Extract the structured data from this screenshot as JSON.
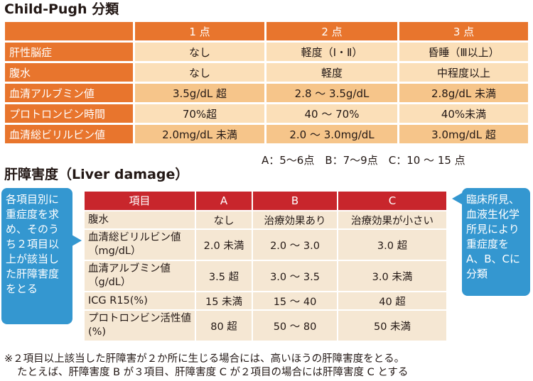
{
  "child_pugh": {
    "title": "Child-Pugh 分類",
    "headers": [
      "",
      "1 点",
      "2 点",
      "3 点"
    ],
    "rows": [
      {
        "label": "肝性脳症",
        "values": [
          "なし",
          "軽度（Ⅰ・Ⅱ）",
          "昏睡（Ⅲ以上）"
        ]
      },
      {
        "label": "腹水",
        "values": [
          "なし",
          "軽度",
          "中程度以上"
        ]
      },
      {
        "label": "血清アルブミン値",
        "values": [
          "3.5g/dL 超",
          "2.8 ～ 3.5g/dL",
          "2.8g/dL 未満"
        ]
      },
      {
        "label": "プロトロンビン時間",
        "values": [
          "70%超",
          "40 ～ 70%",
          "40%未満"
        ]
      },
      {
        "label": "血清総ビリルビン値",
        "values": [
          "2.0mg/dL 未満",
          "2.0 ～ 3.0mg/dL",
          "3.0mg/dL 超"
        ]
      }
    ],
    "scale": "A：5～6点　B：7～9点　C：10 ～ 15 点"
  },
  "liver_damage": {
    "title": "肝障害度（Liver damage）",
    "headers": [
      "項目",
      "A",
      "B",
      "C"
    ],
    "rows": [
      {
        "label": "腹水",
        "values": [
          "なし",
          "治療効果あり",
          "治療効果が小さい"
        ]
      },
      {
        "label": "血清総ビリルビン値（mg/dL）",
        "values": [
          "2.0 未満",
          "2.0 ～ 3.0",
          "3.0 超"
        ]
      },
      {
        "label": "血清アルブミン値（g/dL）",
        "values": [
          "3.5 超",
          "3.0 ～ 3.5",
          "3.0 未満"
        ]
      },
      {
        "label": "ICG R15(%)",
        "values": [
          "15 未満",
          "15 ～ 40",
          "40 超"
        ]
      },
      {
        "label": "プロトロンビン活性値(%)",
        "values": [
          "80 超",
          "50 ～ 80",
          "50 未満"
        ]
      }
    ],
    "callout_left": "各項目別に重症度を求め、そのうち２項目以上が該当した肝障害度をとる",
    "callout_right": "臨床所見、血液生化学所見により重症度をA、B、Cに分類"
  },
  "note": {
    "line1": "※２項目以上該当した肝障害が２か所に生じる場合には、高いほうの肝障害度をとる。",
    "line2": "たとえば、肝障害度 B が３項目、肝障害度 C が２項目の場合には肝障害度 C とする"
  },
  "colors": {
    "orange": "#e8752d",
    "red": "#c8262c",
    "blue": "#3497d0",
    "light": "#fbdfb8",
    "mid": "#f6c58a",
    "cream": "#f5e7d3"
  }
}
